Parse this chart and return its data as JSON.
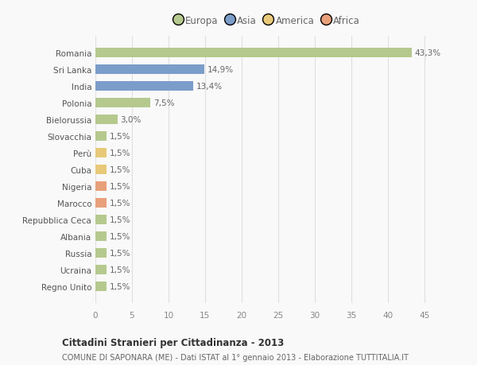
{
  "categories": [
    "Romania",
    "Sri Lanka",
    "India",
    "Polonia",
    "Bielorussia",
    "Slovacchia",
    "Perù",
    "Cuba",
    "Nigeria",
    "Marocco",
    "Repubblica Ceca",
    "Albania",
    "Russia",
    "Ucraina",
    "Regno Unito"
  ],
  "values": [
    43.3,
    14.9,
    13.4,
    7.5,
    3.0,
    1.5,
    1.5,
    1.5,
    1.5,
    1.5,
    1.5,
    1.5,
    1.5,
    1.5,
    1.5
  ],
  "labels": [
    "43,3%",
    "14,9%",
    "13,4%",
    "7,5%",
    "3,0%",
    "1,5%",
    "1,5%",
    "1,5%",
    "1,5%",
    "1,5%",
    "1,5%",
    "1,5%",
    "1,5%",
    "1,5%",
    "1,5%"
  ],
  "colors": [
    "#b5c98e",
    "#7b9dc9",
    "#7b9dc9",
    "#b5c98e",
    "#b5c98e",
    "#b5c98e",
    "#e8c97a",
    "#e8c97a",
    "#e8a07a",
    "#e8a07a",
    "#b5c98e",
    "#b5c98e",
    "#b5c98e",
    "#b5c98e",
    "#b5c98e"
  ],
  "legend_labels": [
    "Europa",
    "Asia",
    "America",
    "Africa"
  ],
  "legend_colors": [
    "#b5c98e",
    "#7b9dc9",
    "#e8c97a",
    "#e8a07a"
  ],
  "title": "Cittadini Stranieri per Cittadinanza - 2013",
  "subtitle": "COMUNE DI SAPONARA (ME) - Dati ISTAT al 1° gennaio 2013 - Elaborazione TUTTITALIA.IT",
  "xlim": [
    0,
    47
  ],
  "xticks": [
    0,
    5,
    10,
    15,
    20,
    25,
    30,
    35,
    40,
    45
  ],
  "background_color": "#f9f9f9",
  "grid_color": "#e0e0e0",
  "bar_height": 0.55
}
